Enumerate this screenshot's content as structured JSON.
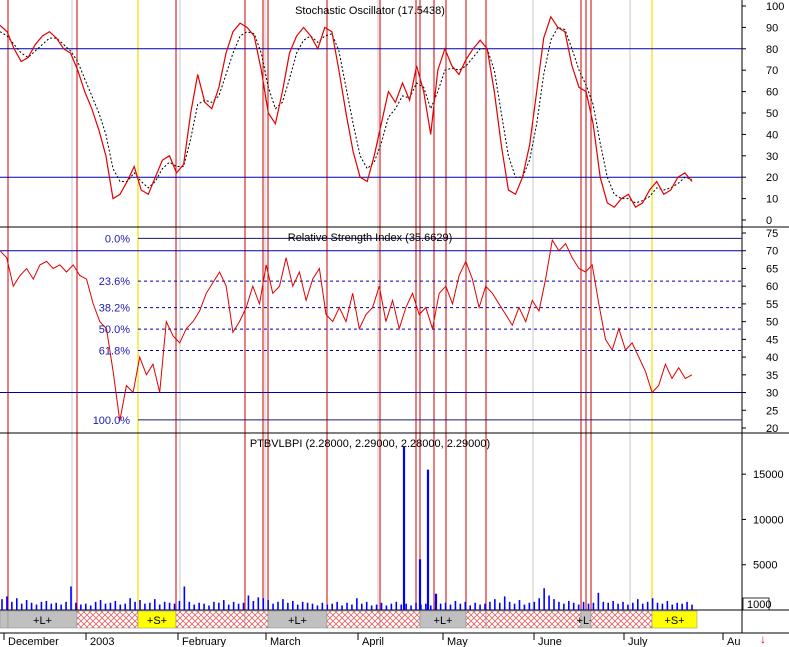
{
  "colors": {
    "price_line": "#e00000",
    "signal_line": "#000000",
    "level_line": "#0000aa",
    "event_red": "#cc0000",
    "event_yellow": "#f0e000",
    "grid": "#c8c8c8",
    "volume": "#0000ff",
    "long_band": "#c0c0c0",
    "short_band": "#ffff00",
    "hatch": "#e06060"
  },
  "chart_data": [
    {
      "type": "line",
      "title": "Stochastic Oscillator (17.5438)",
      "ylim": [
        0,
        100
      ],
      "yticks": [
        0,
        10,
        20,
        30,
        40,
        50,
        60,
        70,
        80,
        90,
        100
      ],
      "levels": [
        20,
        80
      ],
      "series": [
        {
          "values": [
            91,
            88,
            80,
            74,
            76,
            82,
            86,
            88,
            85,
            80,
            78,
            70,
            60,
            52,
            42,
            30,
            10,
            12,
            18,
            25,
            14,
            12,
            20,
            28,
            30,
            22,
            26,
            50,
            68,
            55,
            52,
            62,
            78,
            88,
            92,
            90,
            86,
            70,
            50,
            45,
            60,
            78,
            86,
            90,
            86,
            80,
            90,
            88,
            70,
            50,
            32,
            20,
            18,
            30,
            45,
            60,
            55,
            64,
            56,
            72,
            60,
            40,
            70,
            80,
            72,
            68,
            75,
            80,
            84,
            80,
            60,
            35,
            14,
            12,
            20,
            35,
            60,
            85,
            95,
            90,
            88,
            72,
            62,
            60,
            45,
            20,
            8,
            6,
            10,
            12,
            6,
            8,
            14,
            18,
            12,
            14,
            20,
            22,
            18
          ]
        },
        {
          "values": [
            88,
            86,
            82,
            78,
            76,
            79,
            82,
            85,
            85,
            82,
            79,
            74,
            66,
            58,
            50,
            40,
            24,
            18,
            18,
            22,
            18,
            15,
            18,
            24,
            27,
            25,
            25,
            38,
            54,
            56,
            55,
            58,
            68,
            78,
            86,
            88,
            87,
            78,
            62,
            52,
            55,
            66,
            78,
            84,
            86,
            83,
            86,
            87,
            79,
            62,
            45,
            30,
            24,
            27,
            36,
            48,
            52,
            58,
            57,
            64,
            62,
            52,
            60,
            70,
            71,
            70,
            72,
            76,
            80,
            80,
            70,
            50,
            30,
            20,
            20,
            28,
            45,
            68,
            84,
            90,
            89,
            80,
            70,
            63,
            54,
            36,
            20,
            12,
            10,
            10,
            8,
            9,
            11,
            15,
            14,
            15,
            17,
            20,
            19
          ]
        }
      ]
    },
    {
      "type": "line",
      "title": "Relative Strength Index (35.6629)",
      "ylim": [
        20,
        75
      ],
      "yticks": [
        20,
        25,
        30,
        35,
        40,
        45,
        50,
        55,
        60,
        65,
        70,
        75
      ],
      "levels": [
        30,
        70
      ],
      "fib_labels": [
        "0.0%",
        "23.6%",
        "38.2%",
        "50.0%",
        "61.8%",
        "100.0%"
      ],
      "series": [
        {
          "values": [
            70,
            68,
            60,
            63,
            65,
            62,
            66,
            67,
            65,
            66,
            64,
            66,
            63,
            62,
            55,
            50,
            48,
            36,
            22,
            32,
            30,
            40,
            35,
            38,
            30,
            50,
            46,
            44,
            48,
            50,
            53,
            58,
            61,
            64,
            60,
            47,
            50,
            54,
            60,
            55,
            66,
            58,
            60,
            68,
            60,
            64,
            56,
            62,
            65,
            52,
            50,
            54,
            50,
            58,
            48,
            52,
            54,
            60,
            50,
            56,
            48,
            54,
            58,
            52,
            54,
            48,
            58,
            60,
            55,
            63,
            67,
            62,
            54,
            60,
            58,
            55,
            52,
            49,
            54,
            50,
            56,
            53,
            62,
            73,
            70,
            72,
            68,
            65,
            64,
            66,
            55,
            45,
            42,
            48,
            42,
            44,
            40,
            36,
            30,
            32,
            38,
            34,
            37,
            34,
            35
          ]
        }
      ]
    },
    {
      "type": "bar",
      "title": "PTBVLBPI (2.28000, 2.29000, 2.28000, 2.29000)",
      "ylim": [
        0,
        18000
      ],
      "yticks": [
        5000,
        10000,
        15000
      ],
      "spikes": [
        18000,
        5600,
        15500,
        1800
      ],
      "values": [
        1200,
        1500,
        900,
        1300,
        700,
        1100,
        800,
        600,
        900,
        1000,
        700,
        800,
        600,
        900,
        2600,
        800,
        600,
        700,
        500,
        900,
        1100,
        700,
        800,
        1000,
        600,
        700,
        1300,
        900,
        1100,
        700,
        800,
        1200,
        600,
        900,
        800,
        700,
        1000,
        2600,
        900,
        600,
        800,
        700,
        500,
        900,
        800,
        1100,
        600,
        900,
        700,
        800,
        1600,
        1000,
        1400,
        1300,
        1100,
        700,
        900,
        1200,
        800,
        1000,
        600,
        900,
        800,
        700,
        500,
        800,
        600,
        700,
        900,
        500,
        800,
        600,
        1300,
        700,
        900,
        500,
        600,
        800,
        500,
        700,
        900,
        600,
        700,
        500,
        800,
        600,
        700,
        500,
        900,
        700,
        800,
        600,
        1000,
        700,
        900,
        500,
        800,
        600,
        700,
        900,
        1200,
        800,
        1500,
        900,
        700,
        1100,
        600,
        800,
        900,
        1300,
        2400,
        1600,
        1200,
        900,
        700,
        1000,
        800,
        600,
        900,
        700,
        800,
        1900,
        900,
        800,
        1000,
        700,
        900,
        600,
        800,
        1200,
        700,
        900,
        1300,
        800,
        700,
        1000,
        600,
        800,
        700,
        900,
        600
      ]
    }
  ],
  "xaxis": {
    "labels": [
      "December",
      "2003",
      "February",
      "March",
      "April",
      "May",
      "June",
      "July",
      "Au"
    ]
  },
  "bands": [
    {
      "kind": "long",
      "label": "+L+"
    },
    {
      "kind": "hatch",
      "label": ""
    },
    {
      "kind": "short",
      "label": "+S+"
    },
    {
      "kind": "hatch",
      "label": ""
    },
    {
      "kind": "hatch",
      "label": ""
    },
    {
      "kind": "long",
      "label": "+L+"
    },
    {
      "kind": "hatch",
      "label": ""
    },
    {
      "kind": "hatch",
      "label": ""
    },
    {
      "kind": "long",
      "label": "+L+"
    },
    {
      "kind": "hatch",
      "label": ""
    },
    {
      "kind": "hatch",
      "label": ""
    },
    {
      "kind": "long",
      "label": "+L+"
    },
    {
      "kind": "hatch",
      "label": ""
    },
    {
      "kind": "short",
      "label": "+S+"
    }
  ],
  "volume_readout": "1000",
  "arrow_icon": "down-arrow-icon"
}
